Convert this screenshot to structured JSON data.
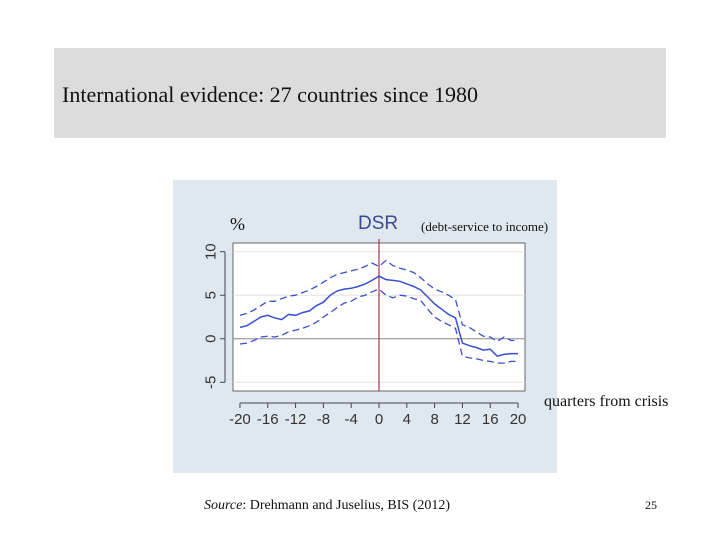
{
  "slide": {
    "title": "International evidence: 27 countries since 1980",
    "source_prefix": "Source",
    "source_text": ": Drehmann and Juselius, BIS (2012)",
    "slide_number": "25"
  },
  "chart_labels": {
    "unit": "%",
    "series_title": "DSR",
    "series_subtitle": "(debt-service to income)",
    "xaxis_title": "quarters from crisis"
  },
  "colors": {
    "series": "#3a4fcf",
    "crisis_line": "#a8324a",
    "zero_line": "#888888",
    "panel": "#dfe8ef",
    "title_band": "#dcdcdc"
  },
  "chart_data": {
    "type": "line",
    "title": "DSR",
    "subtitle": "(debt-service to income)",
    "xlabel": "quarters from crisis",
    "ylabel": "%",
    "xlim": [
      -21,
      21
    ],
    "ylim": [
      -6,
      11
    ],
    "xticks": [
      -20,
      -16,
      -12,
      -8,
      -4,
      0,
      4,
      8,
      12,
      16,
      20
    ],
    "yticks": [
      -5,
      0,
      5,
      10
    ],
    "grid": true,
    "crisis_marker_x": 0,
    "x": [
      -20,
      -19,
      -18,
      -17,
      -16,
      -15,
      -14,
      -13,
      -12,
      -11,
      -10,
      -9,
      -8,
      -7,
      -6,
      -5,
      -4,
      -3,
      -2,
      -1,
      0,
      1,
      2,
      3,
      4,
      5,
      6,
      7,
      8,
      9,
      10,
      11,
      12,
      13,
      14,
      15,
      16,
      17,
      18,
      19,
      20
    ],
    "series": [
      {
        "values": [
          1.3,
          1.5,
          2.0,
          2.5,
          2.7,
          2.4,
          2.2,
          2.8,
          2.7,
          3.0,
          3.2,
          3.8,
          4.2,
          5.0,
          5.5,
          5.7,
          5.8,
          6.0,
          6.3,
          6.7,
          7.2,
          6.8,
          6.7,
          6.6,
          6.3,
          6.0,
          5.6,
          4.8,
          4.0,
          3.4,
          2.8,
          2.4,
          -0.5,
          -0.8,
          -1.0,
          -1.3,
          -1.2,
          -2.0,
          -1.8,
          -1.7,
          -1.7
        ]
      },
      {
        "values": [
          2.7,
          2.9,
          3.3,
          3.8,
          4.3,
          4.3,
          4.6,
          4.9,
          5.0,
          5.3,
          5.6,
          6.0,
          6.5,
          7.0,
          7.4,
          7.6,
          7.8,
          8.0,
          8.3,
          8.7,
          8.3,
          9.0,
          8.4,
          8.1,
          7.9,
          7.6,
          7.0,
          6.3,
          5.7,
          5.4,
          5.0,
          4.5,
          1.6,
          1.3,
          0.8,
          0.3,
          0.2,
          -0.3,
          0.2,
          -0.2,
          -0.2
        ]
      },
      {
        "values": [
          -0.6,
          -0.5,
          -0.2,
          0.2,
          0.3,
          0.2,
          0.4,
          0.8,
          1.0,
          1.2,
          1.5,
          1.9,
          2.5,
          3.0,
          3.6,
          4.1,
          4.3,
          4.8,
          5.0,
          5.4,
          5.7,
          5.0,
          4.7,
          5.0,
          4.9,
          4.6,
          4.4,
          3.4,
          2.5,
          2.0,
          1.6,
          1.2,
          -2.0,
          -2.2,
          -2.3,
          -2.5,
          -2.6,
          -2.8,
          -2.8,
          -2.6,
          -2.6
        ]
      }
    ]
  }
}
